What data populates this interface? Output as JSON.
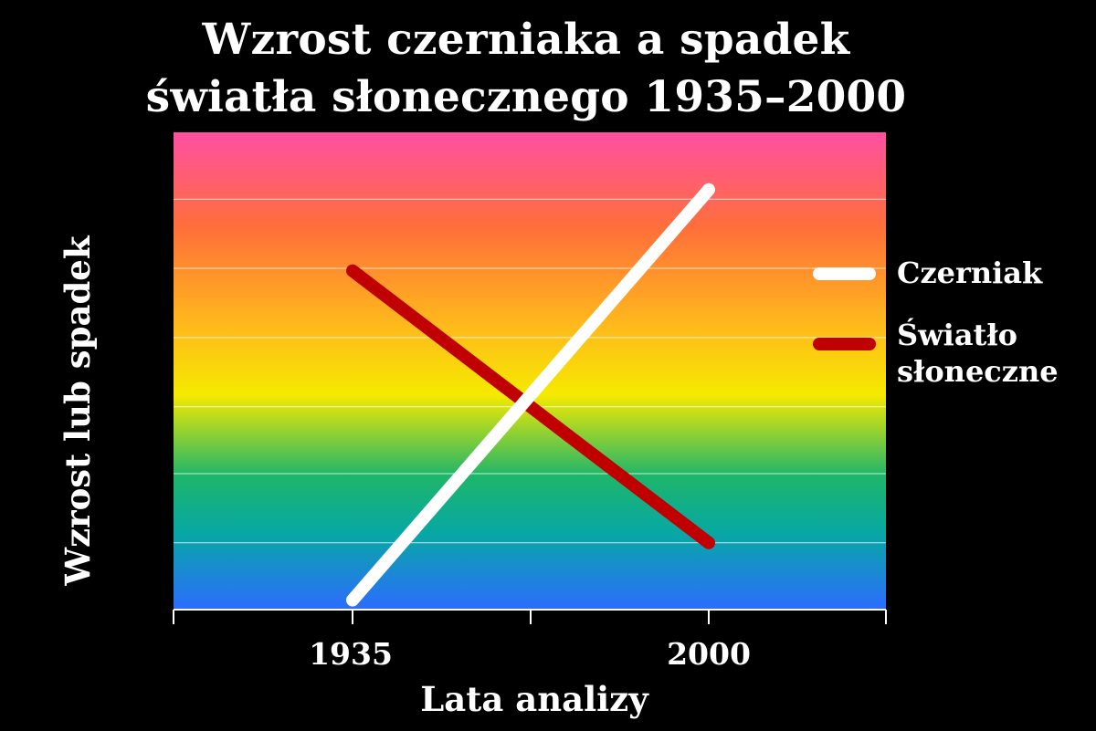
{
  "chart_data": {
    "type": "line",
    "title_lines": [
      "Wzrost czerniaka a spadek",
      "światła słonecznego 1935–2000"
    ],
    "xlabel": "Lata analizy",
    "ylabel": "Wzrost lub spadek",
    "x_ticks": [
      "1935",
      "2000"
    ],
    "grid": true,
    "legend_position": "right",
    "series": [
      {
        "name": "Czerniak",
        "color": "#ffffff",
        "values": [
          0.02,
          0.88
        ]
      },
      {
        "name_lines": [
          "Światło",
          "słoneczne"
        ],
        "color": "#c00000",
        "values": [
          0.71,
          0.14
        ]
      }
    ],
    "background_gradient": [
      "#ff4fa0",
      "#ff7a2e",
      "#fff200",
      "#1ab06a",
      "#0aa8a8",
      "#2d6cff"
    ]
  }
}
